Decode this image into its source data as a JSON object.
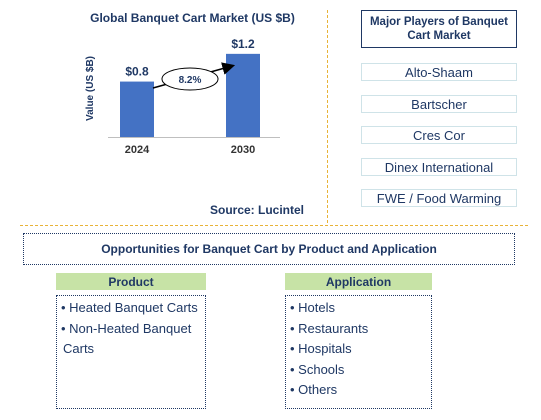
{
  "chart_data": {
    "type": "bar",
    "title": "Global Banquet Cart Market (US $B)",
    "ylabel": "Value (US $B)",
    "categories": [
      "2024",
      "2030"
    ],
    "values": [
      0.8,
      1.2
    ],
    "value_labels": [
      "$0.8",
      "$1.2"
    ],
    "ylim": [
      0,
      1.4
    ],
    "grid": false,
    "bar_color": "#4472c4",
    "cagr_label": "8.2%",
    "source": "Source: Lucintel"
  },
  "players": {
    "header": "Major Players of Banquet Cart Market",
    "items": [
      "Alto-Shaam",
      "Bartscher",
      "Cres Cor",
      "Dinex International",
      "FWE / Food Warming"
    ]
  },
  "opportunities": {
    "title": "Opportunities for Banquet Cart by Product and Application",
    "product": {
      "header": "Product",
      "items": [
        "• Heated Banquet Carts",
        "• Non-Heated Banquet",
        "Carts"
      ]
    },
    "application": {
      "header": "Application",
      "items": [
        "• Hotels",
        "• Restaurants",
        "• Hospitals",
        "• Schools",
        "• Others"
      ]
    }
  },
  "colors": {
    "accent": "#1f3864",
    "separator": "#e8b339",
    "category_header_bg": "#c7e3a6"
  }
}
